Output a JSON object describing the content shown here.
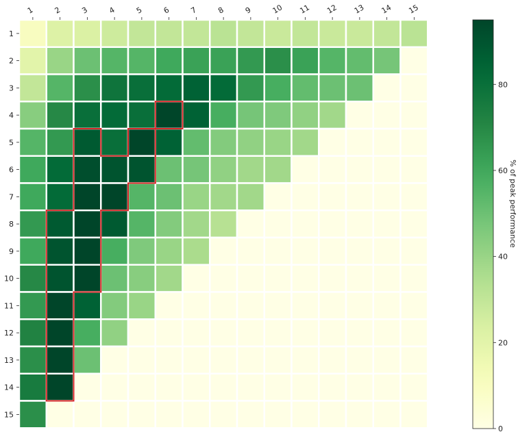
{
  "chart_data": {
    "type": "heatmap",
    "x_ticks": [
      "1",
      "2",
      "3",
      "4",
      "5",
      "6",
      "7",
      "8",
      "9",
      "10",
      "11",
      "12",
      "13",
      "14",
      "15"
    ],
    "y_ticks": [
      "1",
      "2",
      "3",
      "4",
      "5",
      "6",
      "7",
      "8",
      "9",
      "10",
      "11",
      "12",
      "13",
      "14",
      "15"
    ],
    "values": [
      [
        10,
        22,
        23,
        27,
        30,
        30,
        30,
        32,
        30,
        28,
        30,
        28,
        28,
        30,
        32
      ],
      [
        20,
        40,
        50,
        55,
        55,
        60,
        62,
        62,
        65,
        68,
        62,
        55,
        52,
        48,
        0
      ],
      [
        30,
        55,
        68,
        78,
        80,
        82,
        85,
        82,
        65,
        58,
        52,
        50,
        50,
        0,
        0
      ],
      [
        44,
        70,
        80,
        82,
        80,
        95,
        85,
        58,
        48,
        46,
        42,
        38,
        0,
        0,
        0
      ],
      [
        55,
        65,
        88,
        80,
        98,
        85,
        52,
        45,
        42,
        40,
        38,
        0,
        0,
        0,
        0
      ],
      [
        60,
        82,
        92,
        90,
        90,
        50,
        48,
        42,
        38,
        38,
        0,
        0,
        0,
        0,
        0
      ],
      [
        60,
        82,
        95,
        95,
        55,
        50,
        40,
        38,
        38,
        0,
        0,
        0,
        0,
        0,
        0
      ],
      [
        65,
        88,
        98,
        88,
        55,
        45,
        38,
        33,
        0,
        0,
        0,
        0,
        0,
        0,
        0
      ],
      [
        60,
        90,
        98,
        58,
        46,
        40,
        36,
        0,
        0,
        0,
        0,
        0,
        0,
        0,
        0
      ],
      [
        70,
        90,
        95,
        50,
        44,
        38,
        0,
        0,
        0,
        0,
        0,
        0,
        0,
        0,
        0
      ],
      [
        65,
        95,
        85,
        45,
        40,
        0,
        0,
        0,
        0,
        0,
        0,
        0,
        0,
        0,
        0
      ],
      [
        72,
        95,
        58,
        42,
        0,
        0,
        0,
        0,
        0,
        0,
        0,
        0,
        0,
        0,
        0
      ],
      [
        68,
        95,
        50,
        0,
        0,
        0,
        0,
        0,
        0,
        0,
        0,
        0,
        0,
        0,
        0
      ],
      [
        75,
        95,
        0,
        0,
        0,
        0,
        0,
        0,
        0,
        0,
        0,
        0,
        0,
        0,
        0
      ],
      [
        68,
        0,
        0,
        0,
        0,
        0,
        0,
        0,
        0,
        0,
        0,
        0,
        0,
        0,
        0
      ]
    ],
    "highlighted_cells": [
      [
        4,
        6
      ],
      [
        5,
        3
      ],
      [
        5,
        5
      ],
      [
        6,
        3
      ],
      [
        6,
        4
      ],
      [
        6,
        5
      ],
      [
        7,
        3
      ],
      [
        7,
        4
      ],
      [
        8,
        2
      ],
      [
        8,
        3
      ],
      [
        9,
        2
      ],
      [
        9,
        3
      ],
      [
        10,
        2
      ],
      [
        10,
        3
      ],
      [
        11,
        2
      ],
      [
        12,
        2
      ],
      [
        13,
        2
      ],
      [
        14,
        2
      ]
    ],
    "highlight_color": "#d62728",
    "colormap": "YlGn",
    "colorbar": {
      "label": "% of peak performance",
      "range": [
        0,
        95
      ],
      "ticks": [
        "0",
        "20",
        "40",
        "60",
        "80"
      ]
    }
  }
}
